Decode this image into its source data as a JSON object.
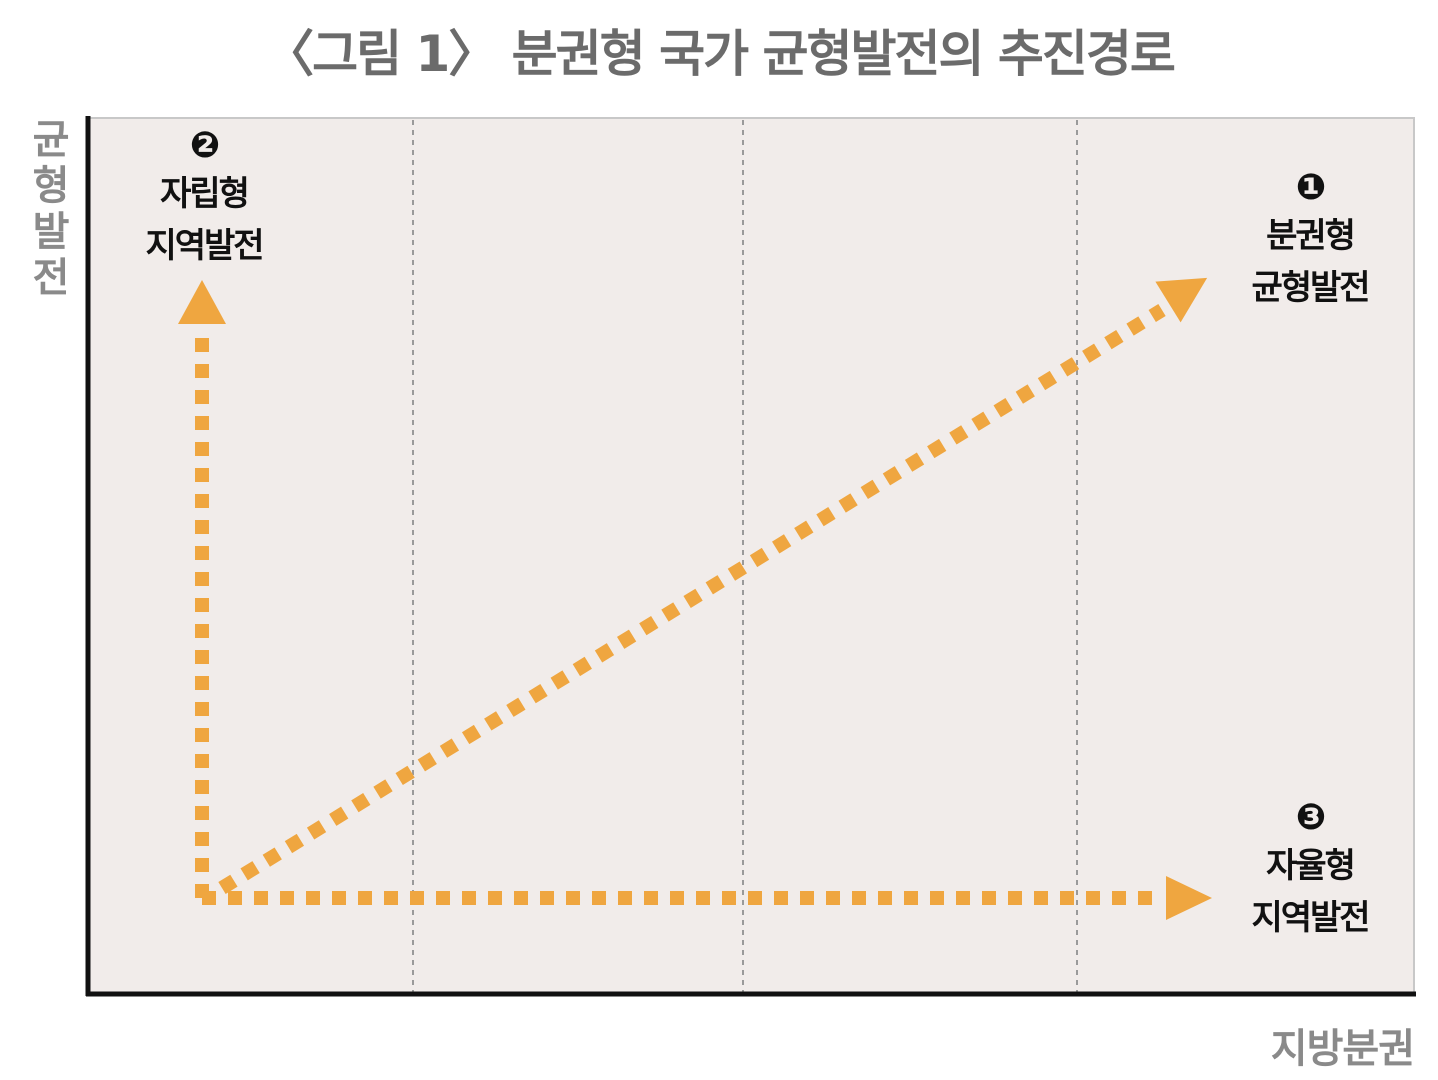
{
  "header": {
    "title": "〈그림 1〉 분권형 국가 균형발전의 추진경로"
  },
  "axes": {
    "y_label": "균형발전",
    "x_label": "지방분권"
  },
  "nodes": [
    {
      "number": "❷",
      "lines": [
        "자립형",
        "지역발전"
      ]
    },
    {
      "number": "❶",
      "lines": [
        "분권형",
        "균형발전"
      ]
    },
    {
      "number": "❸",
      "lines": [
        "자율형",
        "지역발전"
      ]
    }
  ]
}
